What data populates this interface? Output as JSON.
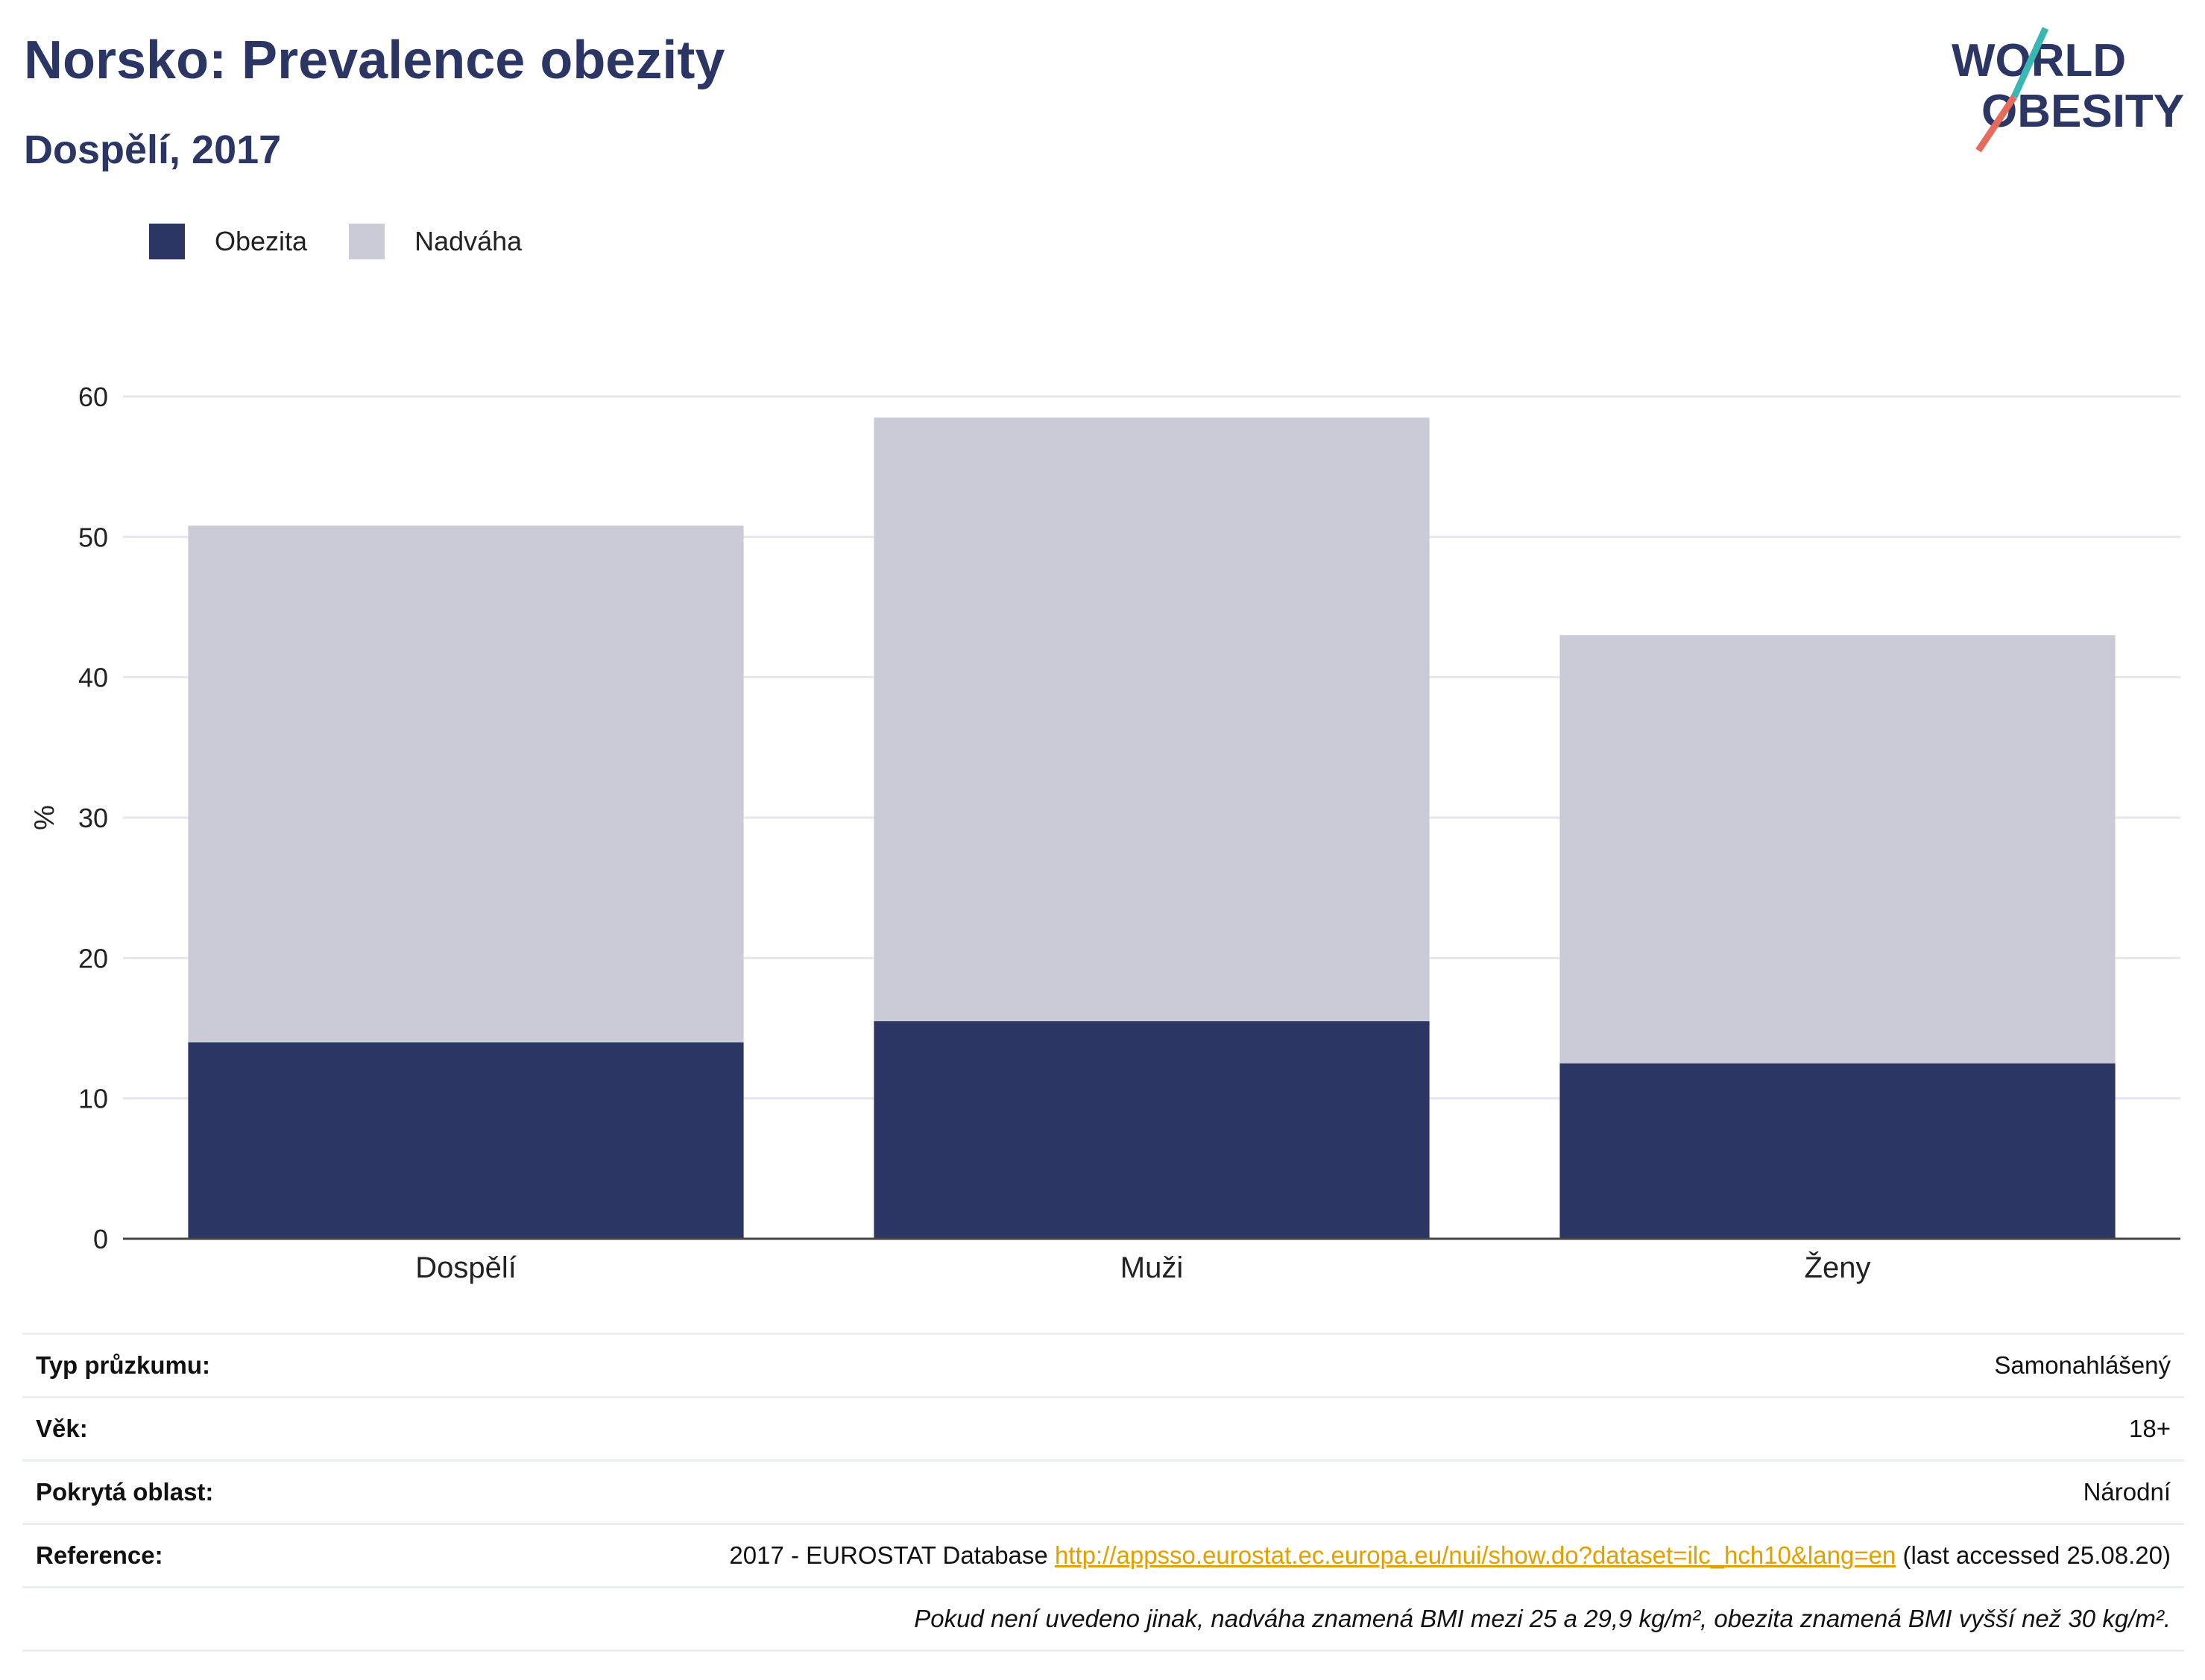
{
  "header": {
    "title": "Norsko: Prevalence obezity",
    "subtitle": "Dospělí, 2017",
    "logo_line1": "WORLD",
    "logo_line2": "OBESITY"
  },
  "colors": {
    "obesity": "#2b3664",
    "overweight": "#cacbd7",
    "grid": "#e6e6ee",
    "accent_red": "#e56b5d",
    "accent_teal": "#3ab7b2",
    "link": "#e0a100"
  },
  "chart_data": {
    "type": "bar",
    "stacked": true,
    "categories": [
      "Dospělí",
      "Muži",
      "Ženy"
    ],
    "series": [
      {
        "name": "Obezita",
        "values": [
          14.0,
          15.5,
          12.5
        ]
      },
      {
        "name": "Nadváha",
        "values": [
          36.8,
          43.0,
          30.5
        ]
      }
    ],
    "totals": [
      50.8,
      58.5,
      43.0
    ],
    "ylabel": "%",
    "ylim": [
      0,
      60
    ],
    "yticks": [
      0,
      10,
      20,
      30,
      40,
      50,
      60
    ],
    "grid": true,
    "legend": "top-left"
  },
  "info": {
    "survey_label": "Typ průzkumu:",
    "survey_value": "Samonahlášený",
    "age_label": "Věk:",
    "age_value": "18+",
    "area_label": "Pokrytá oblast:",
    "area_value": "Národní",
    "ref_label": "Reference:",
    "ref_prefix": "2017 - EUROSTAT Database",
    "ref_link": "http://appsso.eurostat.ec.europa.eu/nui/show.do?dataset=ilc_hch10&lang=en",
    "ref_suffix": "(last accessed 25.08.20)",
    "note": "Pokud není uvedeno jinak, nadváha znamená BMI mezi 25 a 29,9 kg/m², obezita znamená BMI vyšší než 30 kg/m²."
  }
}
